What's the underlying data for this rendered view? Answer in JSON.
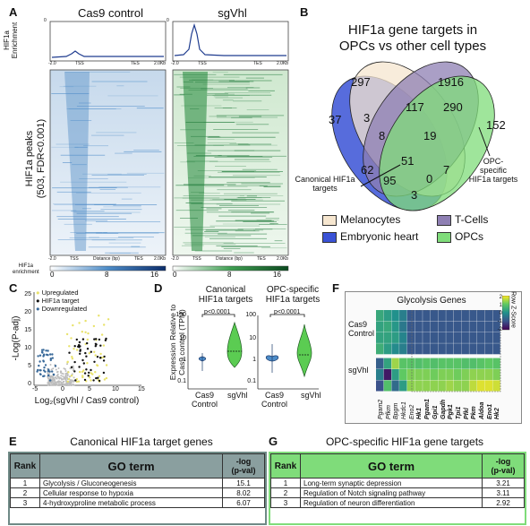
{
  "panels": {
    "a": "A",
    "b": "B",
    "c": "C",
    "d": "D",
    "e": "E",
    "f": "F",
    "g": "G"
  },
  "panel_a": {
    "col1": "Cas9 control",
    "col2": "sgVhl",
    "enrich_label": [
      "HIF1a",
      "Enrichment"
    ],
    "peaks_label": [
      "HIF1a peaks",
      "(503, FDR<0.001)"
    ],
    "profile_ticks": [
      "-2.0",
      "TSS",
      "TES",
      "2.0Kb"
    ],
    "profile_ymax": "0",
    "heat_axis_ticks": [
      "-2.0",
      "TSS",
      "Distance (bp)",
      "TES",
      "2.0Kb"
    ],
    "scale_label": [
      "HIF1a",
      "enrichment"
    ],
    "scale_ticks": [
      "0",
      "8",
      "16"
    ],
    "colors": {
      "control": "#3a78b8",
      "sgvhl": "#1f7a3a"
    }
  },
  "panel_b": {
    "title": [
      "HIF1a gene targets in",
      "OPCs vs other cell types"
    ],
    "numbers": [
      "297",
      "1916",
      "37",
      "3",
      "117",
      "290",
      "152",
      "8",
      "19",
      "62",
      "51",
      "7",
      "95",
      "0",
      "3"
    ],
    "callout_left": [
      "Canonical HIF1a",
      "targets"
    ],
    "callout_right": [
      "OPC-",
      "specific",
      "HIF1a targets"
    ],
    "legend": [
      "Melanocytes",
      "T-Cells",
      "Embryonic heart",
      "OPCs"
    ],
    "colors": {
      "mel": "#f6e6cf",
      "tcell": "#8e7fb3",
      "heart": "#3a52d6",
      "opc": "#7fdc7a"
    }
  },
  "panel_c": {
    "legend": [
      "Upregulated",
      "HIF1a target",
      "Downregulated"
    ],
    "ylabel": "-Log(P-adj)",
    "xlabel": "Log₂(sgVhl / Cas9 control)",
    "xticks": [
      "-5",
      "0",
      "5",
      "10",
      "15"
    ],
    "yticks": [
      "0",
      "5",
      "10",
      "15",
      "20",
      "25"
    ],
    "colors": {
      "up": "#e9e26a",
      "target": "#111111",
      "down": "#3a6a9a",
      "ns": "#bdbdbd"
    }
  },
  "panel_d": {
    "ylabel": [
      "Expression Relative to",
      "Cas9 control (TPM)"
    ],
    "left_title": [
      "Canonical",
      "HIF1a targets"
    ],
    "right_title": [
      "OPC-specific",
      "HIF1a targets"
    ],
    "pval": "p<0.0001",
    "yticks": [
      "0.1",
      "1",
      "10",
      "100"
    ],
    "xcats": [
      "Cas9\nControl",
      "sgVhl"
    ],
    "xcat1": [
      "Cas9",
      "Control"
    ],
    "xcat2": "sgVhl"
  },
  "panel_f": {
    "title": "Glycolysis Genes",
    "row_groups": [
      [
        "Cas9",
        "Control"
      ],
      [
        "sgVhl"
      ]
    ],
    "genes_plain": [
      "Pgam2",
      "Pfkm",
      "Bpgm",
      "Hkdc1",
      "Eno2"
    ],
    "genes_bold": [
      "Hk1",
      "Pgam1",
      "Gpi1",
      "Gapdh",
      "Pgk1",
      "Tpi1",
      "Pfkl",
      "Pkm",
      "Aldoa",
      "Eno1",
      "Hk2"
    ],
    "colorbar_label": "Row Z-Score",
    "colorbar_ticks": [
      "2",
      "1",
      "0",
      "-1",
      "-2"
    ],
    "matrix": [
      [
        0.4,
        0.2,
        0.0,
        -0.3,
        -0.9,
        -0.9,
        -0.9,
        -0.9,
        -0.9,
        -0.9,
        -0.9,
        -0.9,
        -0.9,
        -0.9,
        -0.9,
        -0.9
      ],
      [
        0.3,
        0.4,
        0.1,
        -0.4,
        -0.9,
        -0.9,
        -0.9,
        -0.9,
        -0.9,
        -0.9,
        -0.9,
        -0.9,
        -0.9,
        -0.9,
        -0.9,
        -0.9
      ],
      [
        0.3,
        0.3,
        0.2,
        -0.2,
        -0.9,
        -0.9,
        -0.9,
        -0.9,
        -0.9,
        -0.9,
        -0.9,
        -0.9,
        -0.9,
        -0.9,
        -0.9,
        -0.9
      ],
      [
        0.5,
        0.2,
        -0.1,
        -0.3,
        -0.9,
        -0.9,
        -0.9,
        -0.9,
        -0.9,
        -0.9,
        -0.9,
        -0.9,
        -0.9,
        -0.9,
        -0.9,
        -0.9
      ],
      [
        -0.8,
        0.3,
        1.4,
        0.9,
        0.9,
        0.8,
        0.9,
        0.8,
        0.9,
        0.9,
        0.9,
        0.8,
        0.8,
        0.9,
        1.0,
        0.9
      ],
      [
        -0.3,
        -1.7,
        0.2,
        1.0,
        1.2,
        1.2,
        1.2,
        1.1,
        1.2,
        1.2,
        1.1,
        1.2,
        1.3,
        1.3,
        1.3,
        1.2
      ],
      [
        -1.0,
        0.8,
        -0.6,
        0.2,
        1.3,
        1.3,
        1.3,
        1.3,
        1.3,
        1.4,
        1.3,
        1.3,
        1.6,
        1.8,
        1.8,
        1.7
      ]
    ]
  },
  "panel_e": {
    "title": "Canonical HIF1a target genes",
    "headers": [
      "Rank",
      "GO term",
      "-log\n(p-val)"
    ],
    "h_log": [
      "-log",
      "(p-val)"
    ],
    "rows": [
      [
        "1",
        "Glycolysis / Gluconeogenesis",
        "15.1"
      ],
      [
        "2",
        "Cellular response to hypoxia",
        "8.02"
      ],
      [
        "3",
        "4-hydroxyproline metabolic process",
        "6.07"
      ]
    ],
    "colors": {
      "header": "#8a9f9f",
      "title_border": "#6f8a86"
    }
  },
  "panel_g": {
    "title": "OPC-specific HIF1a gene targets",
    "headers": [
      "Rank",
      "GO term",
      "-log\n(p-val)"
    ],
    "h_log": [
      "-log",
      "(p-val)"
    ],
    "rows": [
      [
        "1",
        "Long-term synaptic depression",
        "3.21"
      ],
      [
        "2",
        "Regulation of Notch signaling pathway",
        "3.11"
      ],
      [
        "3",
        "Regulation of neuron differentiation",
        "2.92"
      ]
    ],
    "colors": {
      "header": "#7fdc7a"
    }
  }
}
